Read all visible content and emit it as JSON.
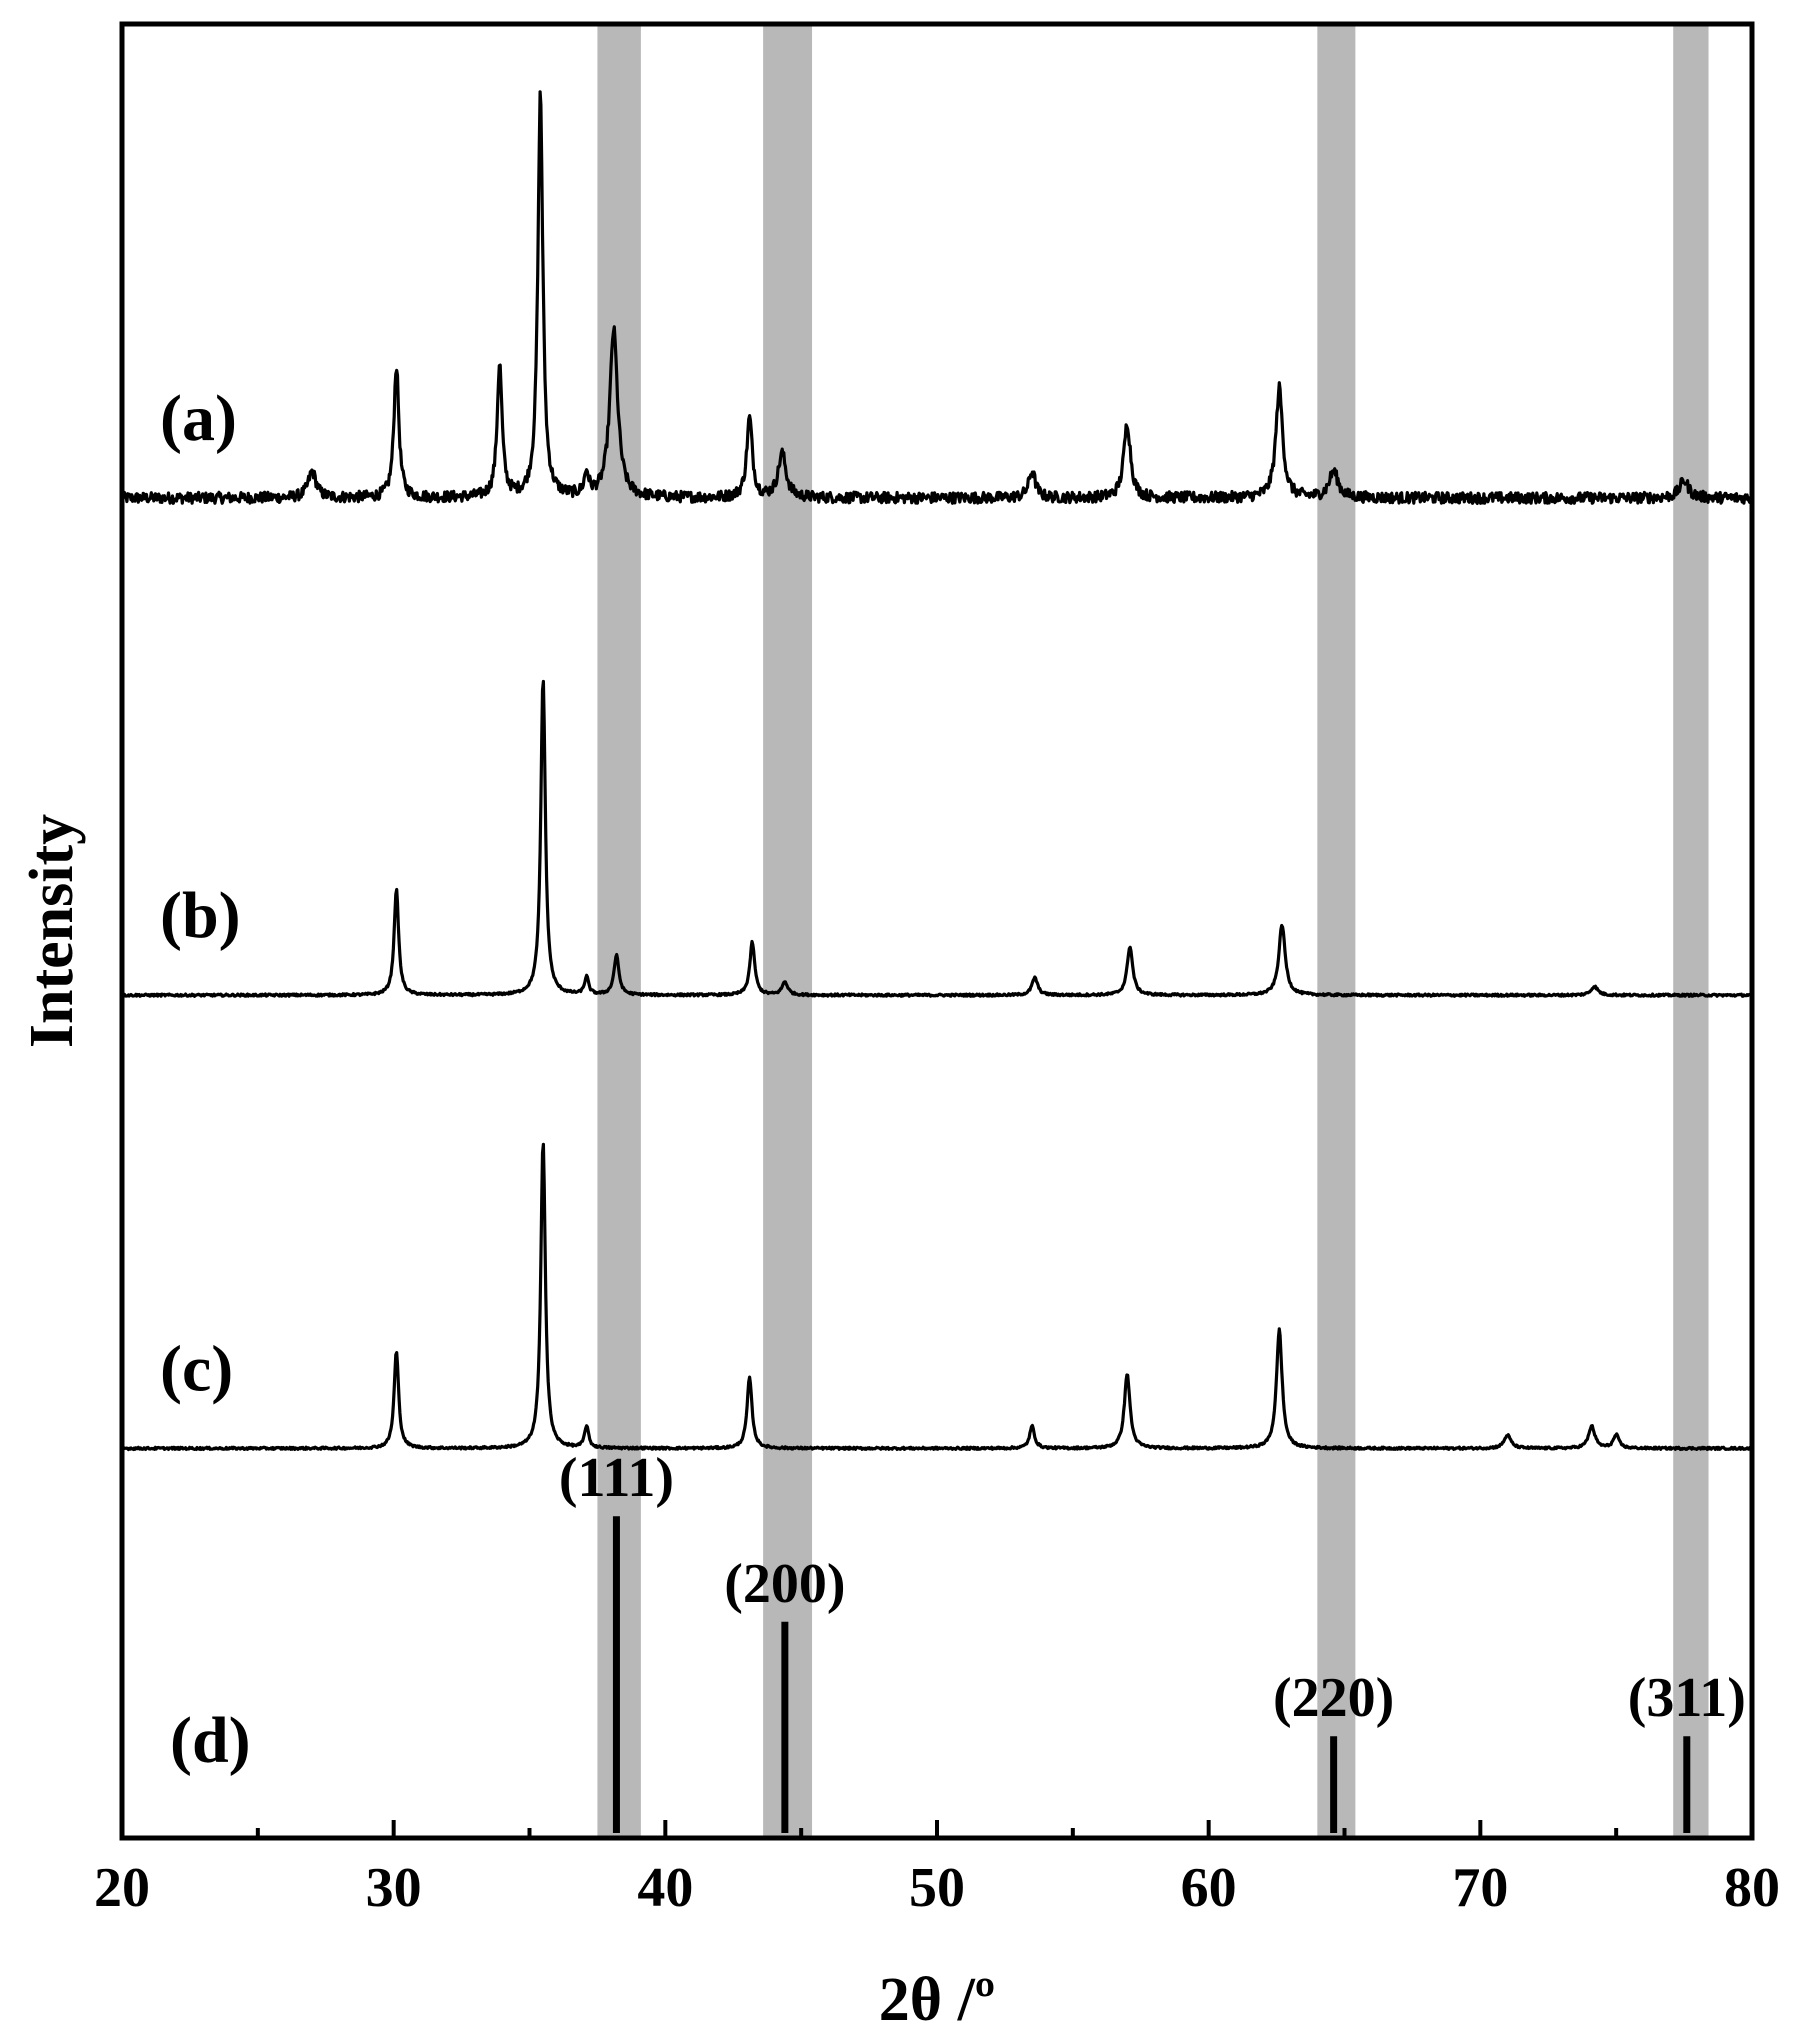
{
  "chart_data": {
    "type": "line",
    "xlabel": "2θ /º",
    "ylabel": "Intensity",
    "xlim": [
      20,
      80
    ],
    "x_ticks": [
      20,
      30,
      40,
      50,
      60,
      70,
      80
    ],
    "x_minor_step": 5,
    "line_color": "#000000",
    "band_color": "#b8b8b8",
    "highlight_bands": [
      {
        "from": 37.5,
        "to": 39.1
      },
      {
        "from": 43.6,
        "to": 45.4
      },
      {
        "from": 64.0,
        "to": 65.4
      },
      {
        "from": 77.1,
        "to": 78.4
      }
    ],
    "series": [
      {
        "name": "(a)",
        "baseline_offset": 3.0,
        "noise": 0.025,
        "peaks": [
          {
            "x": 27.0,
            "h": 0.06,
            "w": 0.35
          },
          {
            "x": 30.1,
            "h": 0.3,
            "w": 0.22
          },
          {
            "x": 33.9,
            "h": 0.3,
            "w": 0.22
          },
          {
            "x": 35.4,
            "h": 0.92,
            "w": 0.22
          },
          {
            "x": 37.1,
            "h": 0.05,
            "w": 0.2
          },
          {
            "x": 38.1,
            "h": 0.38,
            "w": 0.35
          },
          {
            "x": 43.1,
            "h": 0.18,
            "w": 0.25
          },
          {
            "x": 44.3,
            "h": 0.1,
            "w": 0.35
          },
          {
            "x": 53.5,
            "h": 0.06,
            "w": 0.3
          },
          {
            "x": 57.0,
            "h": 0.17,
            "w": 0.3
          },
          {
            "x": 62.6,
            "h": 0.25,
            "w": 0.3
          },
          {
            "x": 64.6,
            "h": 0.06,
            "w": 0.4
          },
          {
            "x": 77.5,
            "h": 0.04,
            "w": 0.4
          }
        ]
      },
      {
        "name": "(b)",
        "baseline_offset": 1.87,
        "noise": 0.005,
        "peaks": [
          {
            "x": 30.1,
            "h": 0.24,
            "w": 0.2
          },
          {
            "x": 35.5,
            "h": 0.72,
            "w": 0.2
          },
          {
            "x": 37.1,
            "h": 0.04,
            "w": 0.18
          },
          {
            "x": 38.2,
            "h": 0.09,
            "w": 0.22
          },
          {
            "x": 43.2,
            "h": 0.12,
            "w": 0.22
          },
          {
            "x": 44.4,
            "h": 0.03,
            "w": 0.25
          },
          {
            "x": 53.6,
            "h": 0.04,
            "w": 0.25
          },
          {
            "x": 57.1,
            "h": 0.11,
            "w": 0.25
          },
          {
            "x": 62.7,
            "h": 0.16,
            "w": 0.28
          },
          {
            "x": 74.2,
            "h": 0.02,
            "w": 0.3
          }
        ]
      },
      {
        "name": "(c)",
        "baseline_offset": 0.84,
        "noise": 0.005,
        "peaks": [
          {
            "x": 30.1,
            "h": 0.22,
            "w": 0.2
          },
          {
            "x": 35.5,
            "h": 0.7,
            "w": 0.2
          },
          {
            "x": 37.1,
            "h": 0.05,
            "w": 0.18
          },
          {
            "x": 43.1,
            "h": 0.16,
            "w": 0.22
          },
          {
            "x": 53.5,
            "h": 0.05,
            "w": 0.22
          },
          {
            "x": 57.0,
            "h": 0.17,
            "w": 0.25
          },
          {
            "x": 62.6,
            "h": 0.27,
            "w": 0.25
          },
          {
            "x": 71.0,
            "h": 0.03,
            "w": 0.3
          },
          {
            "x": 74.1,
            "h": 0.05,
            "w": 0.28
          },
          {
            "x": 75.0,
            "h": 0.03,
            "w": 0.25
          }
        ]
      }
    ],
    "reference": {
      "name": "(d)",
      "lines": [
        {
          "x": 38.2,
          "h": 0.72,
          "label": "(111)"
        },
        {
          "x": 44.4,
          "h": 0.48,
          "label": "(200)"
        },
        {
          "x": 64.6,
          "h": 0.22,
          "label": "(220)"
        },
        {
          "x": 77.6,
          "h": 0.22,
          "label": "(311)"
        }
      ]
    }
  }
}
